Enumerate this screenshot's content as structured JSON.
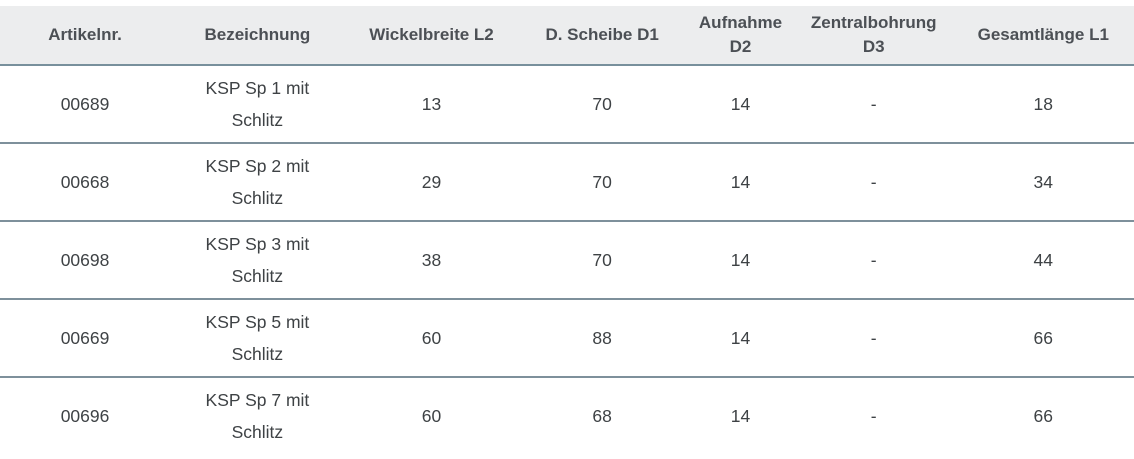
{
  "colors": {
    "header_bg": "#ecedee",
    "header_text": "#4c5055",
    "body_text": "#3e4245",
    "row_divider": "#7e909b",
    "row_bg": "#ffffff"
  },
  "table": {
    "columns": [
      {
        "key": "artikelnr",
        "label": "Artikelnr."
      },
      {
        "key": "bezeichnung",
        "label": "Bezeichnung"
      },
      {
        "key": "wickelbreite_l2",
        "label": "Wickelbreite L2"
      },
      {
        "key": "d_scheibe_d1",
        "label": "D. Scheibe D1"
      },
      {
        "key": "aufnahme_d2",
        "label": "Aufnahme D2"
      },
      {
        "key": "zentralbohrung_d3",
        "label": "Zentralbohrung D3"
      },
      {
        "key": "gesamtlaenge_l1",
        "label": "Gesamtlänge L1"
      }
    ],
    "rows": [
      {
        "artikelnr": "00689",
        "bezeichnung": "KSP Sp 1 mit Schlitz",
        "wickelbreite_l2": "13",
        "d_scheibe_d1": "70",
        "aufnahme_d2": "14",
        "zentralbohrung_d3": "-",
        "gesamtlaenge_l1": "18"
      },
      {
        "artikelnr": "00668",
        "bezeichnung": "KSP Sp 2 mit Schlitz",
        "wickelbreite_l2": "29",
        "d_scheibe_d1": "70",
        "aufnahme_d2": "14",
        "zentralbohrung_d3": "-",
        "gesamtlaenge_l1": "34"
      },
      {
        "artikelnr": "00698",
        "bezeichnung": "KSP Sp 3 mit Schlitz",
        "wickelbreite_l2": "38",
        "d_scheibe_d1": "70",
        "aufnahme_d2": "14",
        "zentralbohrung_d3": "-",
        "gesamtlaenge_l1": "44"
      },
      {
        "artikelnr": "00669",
        "bezeichnung": "KSP Sp 5 mit Schlitz",
        "wickelbreite_l2": "60",
        "d_scheibe_d1": "88",
        "aufnahme_d2": "14",
        "zentralbohrung_d3": "-",
        "gesamtlaenge_l1": "66"
      },
      {
        "artikelnr": "00696",
        "bezeichnung": "KSP Sp 7 mit Schlitz",
        "wickelbreite_l2": "60",
        "d_scheibe_d1": "68",
        "aufnahme_d2": "14",
        "zentralbohrung_d3": "-",
        "gesamtlaenge_l1": "66"
      }
    ]
  }
}
